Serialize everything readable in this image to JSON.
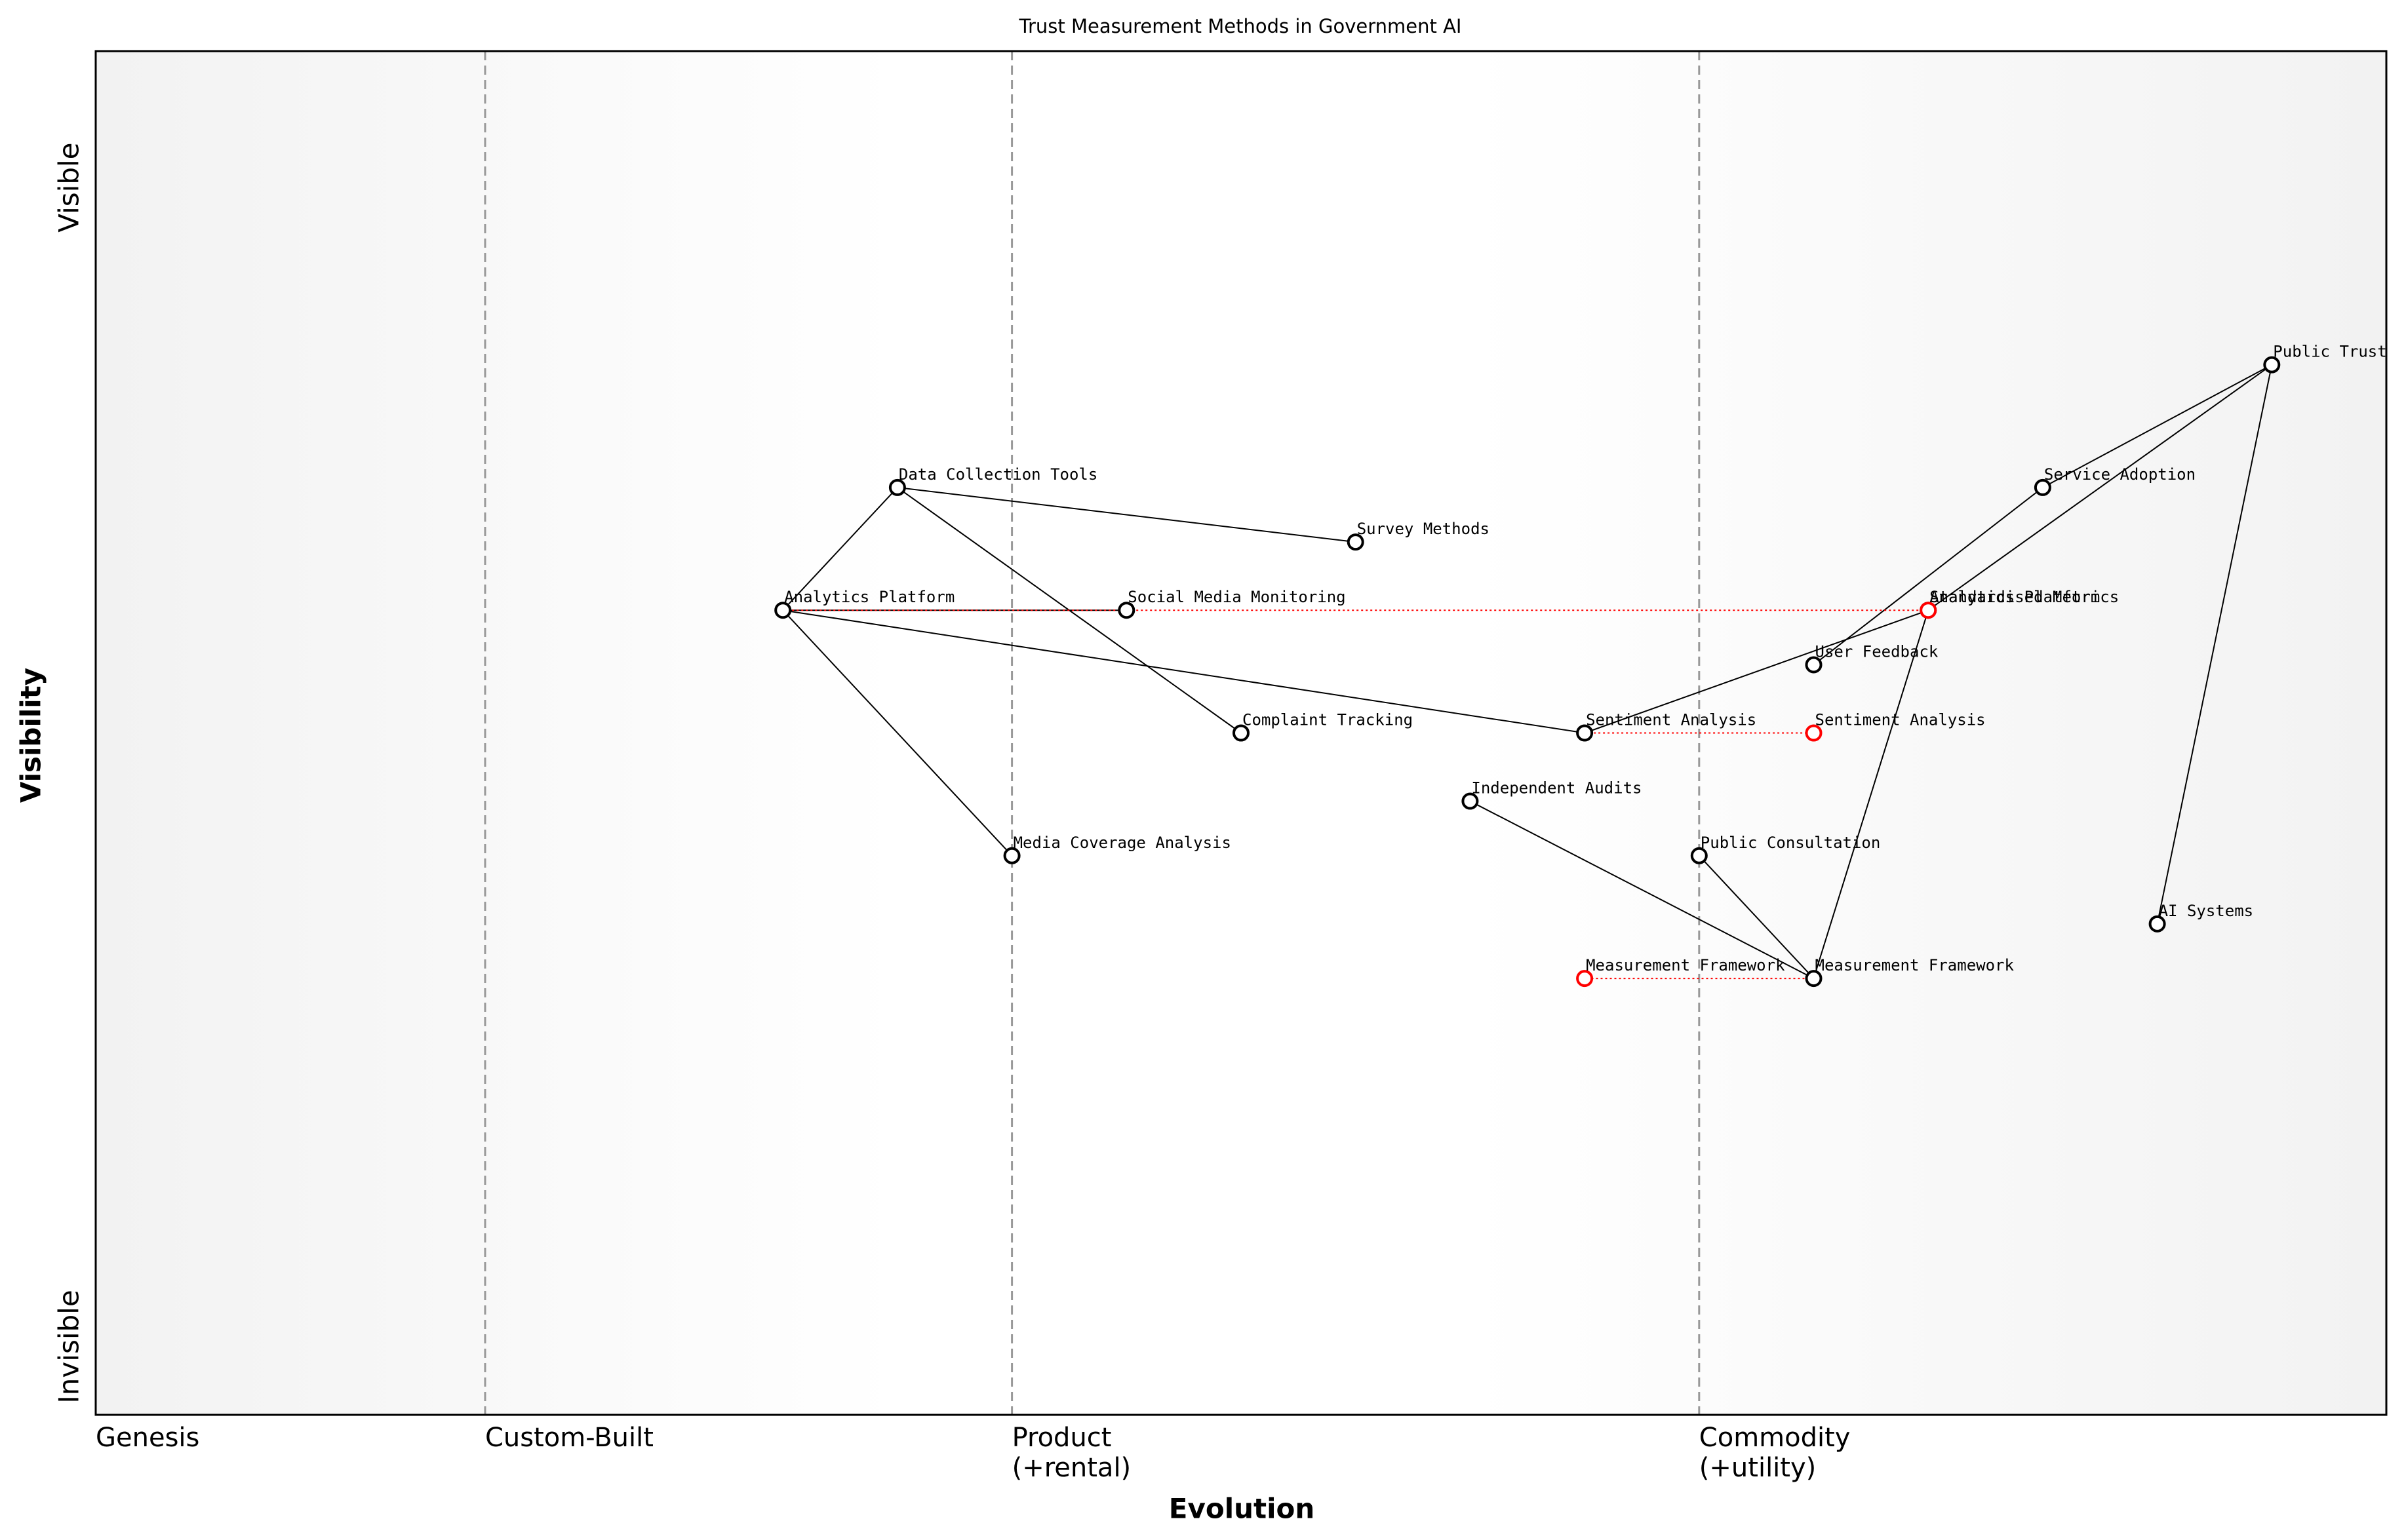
{
  "chart_data": {
    "type": "wardley",
    "title": "Trust Measurement Methods in Government AI",
    "xlabel": "Evolution",
    "ylabel": "Visibility",
    "xlim": [
      0,
      1
    ],
    "ylim": [
      0,
      1
    ],
    "xticks": [
      {
        "value": 0,
        "label": "Genesis"
      },
      {
        "value": 0.17,
        "label": "Custom-Built"
      },
      {
        "value": 0.4,
        "label": "Product\n(+rental)"
      },
      {
        "value": 0.7,
        "label": "Commodity\n(+utility)"
      }
    ],
    "yticks": [
      {
        "value": 0.9,
        "label": "Visible"
      },
      {
        "value": 0.05,
        "label": "Invisible"
      }
    ],
    "node_color": "#000000",
    "evolve_color": "#ff0000",
    "nodes": [
      {
        "name": "Public Trust",
        "x": 0.95,
        "y": 0.77
      },
      {
        "name": "Service Adoption",
        "x": 0.85,
        "y": 0.68
      },
      {
        "name": "Data Collection Tools",
        "x": 0.35,
        "y": 0.68
      },
      {
        "name": "Survey Methods",
        "x": 0.55,
        "y": 0.64
      },
      {
        "name": "Analytics Platform",
        "x": 0.3,
        "y": 0.59
      },
      {
        "name": "Social Media Monitoring",
        "x": 0.45,
        "y": 0.59
      },
      {
        "name": "Standardised Metrics",
        "x": 0.8,
        "y": 0.59
      },
      {
        "name": "User Feedback",
        "x": 0.75,
        "y": 0.55
      },
      {
        "name": "Complaint Tracking",
        "x": 0.5,
        "y": 0.5
      },
      {
        "name": "Sentiment Analysis",
        "x": 0.65,
        "y": 0.5
      },
      {
        "name": "Independent Audits",
        "x": 0.6,
        "y": 0.45
      },
      {
        "name": "Media Coverage Analysis",
        "x": 0.4,
        "y": 0.41
      },
      {
        "name": "Public Consultation",
        "x": 0.7,
        "y": 0.41
      },
      {
        "name": "AI Systems",
        "x": 0.9,
        "y": 0.36
      },
      {
        "name": "Measurement Framework",
        "x": 0.75,
        "y": 0.32
      }
    ],
    "edges": [
      [
        "Public Trust",
        "Service Adoption"
      ],
      [
        "Public Trust",
        "Standardised Metrics"
      ],
      [
        "Public Trust",
        "AI Systems"
      ],
      [
        "Service Adoption",
        "User Feedback"
      ],
      [
        "Standardised Metrics",
        "Sentiment Analysis"
      ],
      [
        "Standardised Metrics",
        "Measurement Framework"
      ],
      [
        "Measurement Framework",
        "Public Consultation"
      ],
      [
        "Measurement Framework",
        "Independent Audits"
      ],
      [
        "Analytics Platform",
        "Data Collection Tools"
      ],
      [
        "Analytics Platform",
        "Social Media Monitoring"
      ],
      [
        "Analytics Platform",
        "Media Coverage Analysis"
      ],
      [
        "Analytics Platform",
        "Sentiment Analysis"
      ],
      [
        "Data Collection Tools",
        "Survey Methods"
      ],
      [
        "Data Collection Tools",
        "Complaint Tracking"
      ]
    ],
    "evolutions": [
      {
        "name": "Analytics Platform",
        "x": 0.8
      },
      {
        "name": "Sentiment Analysis",
        "x": 0.75
      },
      {
        "name": "Measurement Framework",
        "x": 0.65
      }
    ]
  }
}
